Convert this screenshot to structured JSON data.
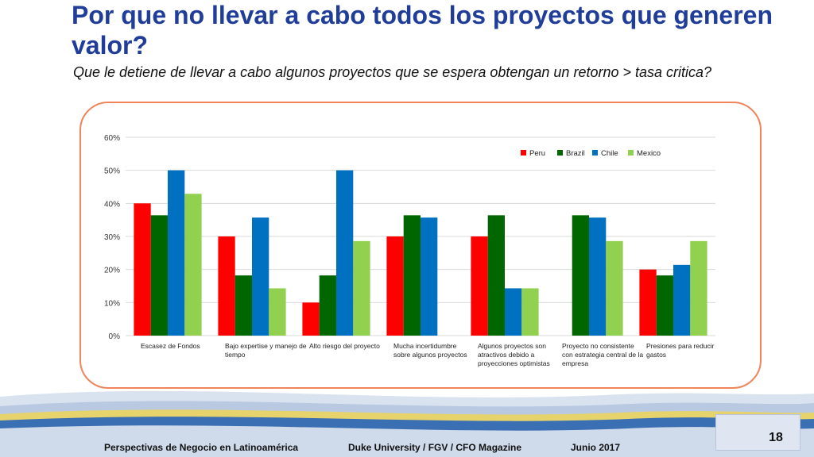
{
  "slide": {
    "title": "Por que no llevar a cabo todos los proyectos que generen valor?",
    "subtitle": "Que le detiene de llevar a cabo algunos proyectos que se espera obtengan un retorno > tasa critica?",
    "page_number": "18",
    "footer": {
      "left": "Perspectivas de Negocio en Latinoamérica",
      "center": "Duke University / FGV / CFO Magazine",
      "right": "Junio 2017"
    }
  },
  "colors": {
    "title": "#1f3d99",
    "frame": "#f0845a",
    "grid": "#d9d9d9"
  },
  "chart_data": {
    "type": "bar",
    "title": "",
    "xlabel": "",
    "ylabel": "",
    "ylim": [
      0,
      60
    ],
    "yticks": [
      "0%",
      "10%",
      "20%",
      "30%",
      "40%",
      "50%",
      "60%"
    ],
    "ytick_values": [
      0,
      10,
      20,
      30,
      40,
      50,
      60
    ],
    "legend_position": "top-right",
    "categories": [
      [
        "Escasez de Fondos"
      ],
      [
        "Bajo expertise y manejo de",
        "tiempo"
      ],
      [
        "Alto riesgo del proyecto"
      ],
      [
        "Mucha incertidumbre",
        "sobre algunos proyectos"
      ],
      [
        "Algunos proyectos son",
        "atractivos debido a",
        "proyecciones optimistas"
      ],
      [
        "Proyecto no consistente",
        "con estrategia central de la",
        "empresa"
      ],
      [
        "Presiones para reducir",
        "gastos"
      ]
    ],
    "series": [
      {
        "name": "Peru",
        "color": "#ff0000",
        "values": [
          40,
          30,
          10,
          30,
          30,
          0,
          20
        ]
      },
      {
        "name": "Brazil",
        "color": "#006600",
        "values": [
          36.4,
          18.2,
          18.2,
          36.4,
          36.4,
          36.4,
          18.2
        ]
      },
      {
        "name": "Chile",
        "color": "#0070c0",
        "values": [
          50,
          35.7,
          50,
          35.7,
          14.3,
          35.7,
          21.4
        ]
      },
      {
        "name": "Mexico",
        "color": "#92d050",
        "values": [
          42.9,
          14.3,
          28.6,
          0,
          14.3,
          28.6,
          28.6
        ]
      }
    ]
  }
}
